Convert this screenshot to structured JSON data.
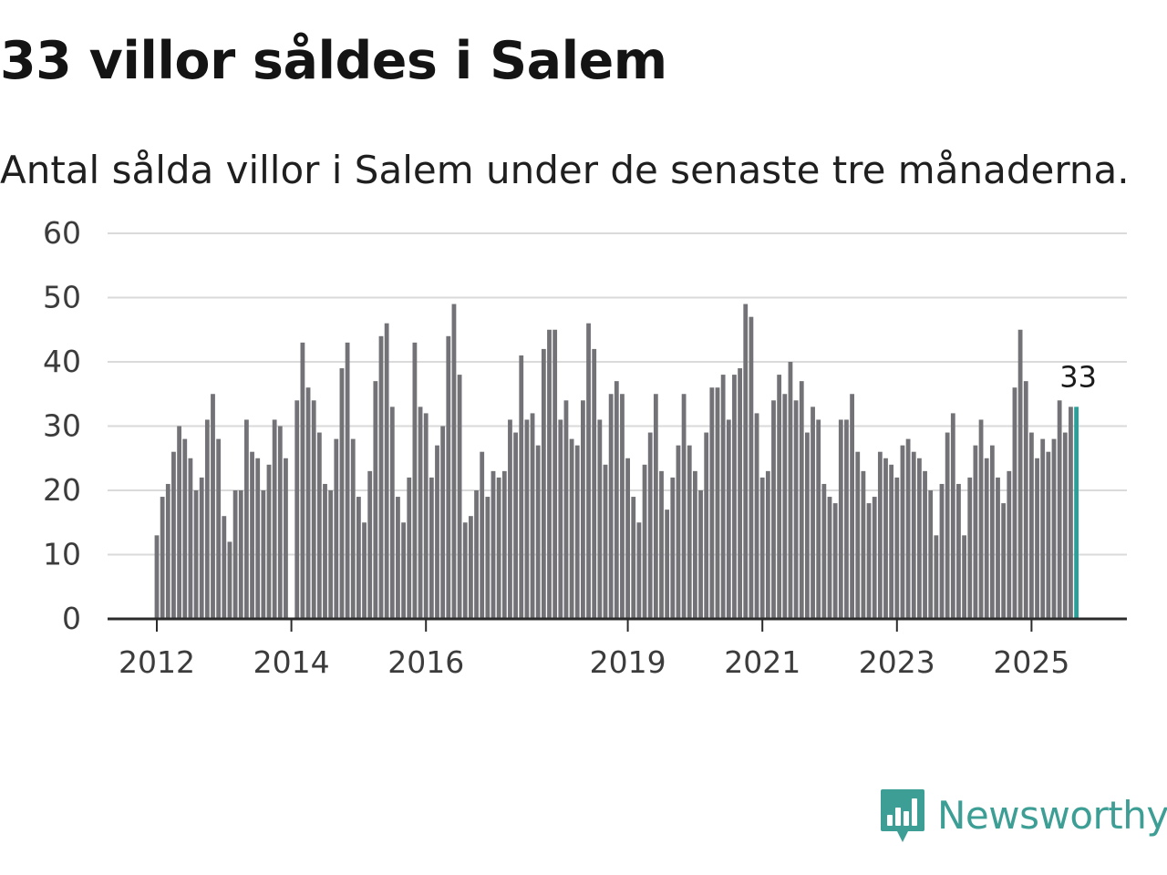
{
  "header": {
    "title": "33 villor såldes i Salem",
    "subtitle": "Antal sålda villor i Salem under de senaste tre månaderna."
  },
  "chart_data": {
    "type": "bar",
    "title": "33 villor såldes i Salem",
    "subtitle": "Antal sålda villor i Salem under de senaste tre månaderna.",
    "xlabel": "",
    "ylabel": "",
    "ylim": [
      0,
      60
    ],
    "yticks": [
      0,
      10,
      20,
      30,
      40,
      50,
      60
    ],
    "grid": true,
    "x_tick_labels": [
      {
        "label": "2012",
        "index": 0
      },
      {
        "label": "2014",
        "index": 24
      },
      {
        "label": "2016",
        "index": 48
      },
      {
        "label": "2019",
        "index": 84
      },
      {
        "label": "2021",
        "index": 108
      },
      {
        "label": "2023",
        "index": 132
      },
      {
        "label": "2025",
        "index": 156
      }
    ],
    "series": [
      {
        "name": "Antal sålda villor",
        "values": [
          13,
          19,
          21,
          26,
          30,
          28,
          25,
          20,
          22,
          31,
          35,
          28,
          16,
          12,
          20,
          20,
          31,
          26,
          25,
          20,
          24,
          31,
          30,
          25,
          0,
          34,
          43,
          36,
          34,
          29,
          21,
          20,
          28,
          39,
          43,
          28,
          19,
          15,
          23,
          37,
          44,
          46,
          33,
          19,
          15,
          22,
          43,
          33,
          32,
          22,
          27,
          30,
          44,
          49,
          38,
          15,
          16,
          20,
          26,
          19,
          23,
          22,
          23,
          31,
          29,
          41,
          31,
          32,
          27,
          42,
          45,
          45,
          31,
          34,
          28,
          27,
          34,
          46,
          42,
          31,
          24,
          35,
          37,
          35,
          25,
          19,
          15,
          24,
          29,
          35,
          23,
          17,
          22,
          27,
          35,
          27,
          23,
          20,
          29,
          36,
          36,
          38,
          31,
          38,
          39,
          49,
          47,
          32,
          22,
          23,
          34,
          38,
          35,
          40,
          34,
          37,
          29,
          33,
          31,
          21,
          19,
          18,
          31,
          31,
          35,
          26,
          23,
          18,
          19,
          26,
          25,
          24,
          22,
          27,
          28,
          26,
          25,
          23,
          20,
          13,
          21,
          29,
          32,
          21,
          13,
          22,
          27,
          31,
          25,
          27,
          22,
          18,
          23,
          36,
          45,
          37,
          29,
          25,
          28,
          26,
          28,
          34,
          29,
          33,
          33
        ]
      }
    ],
    "highlight": {
      "index": 164,
      "value": 33,
      "label": "33",
      "color": "#2aa198"
    },
    "colors": {
      "bar": "#737277",
      "highlight": "#2aa198",
      "grid": "#dadada",
      "axis": "#2b2b2b"
    }
  },
  "brand": {
    "name": "Newsworthy",
    "color": "#3d9e95",
    "icon": "newsworthy-logo-icon"
  }
}
